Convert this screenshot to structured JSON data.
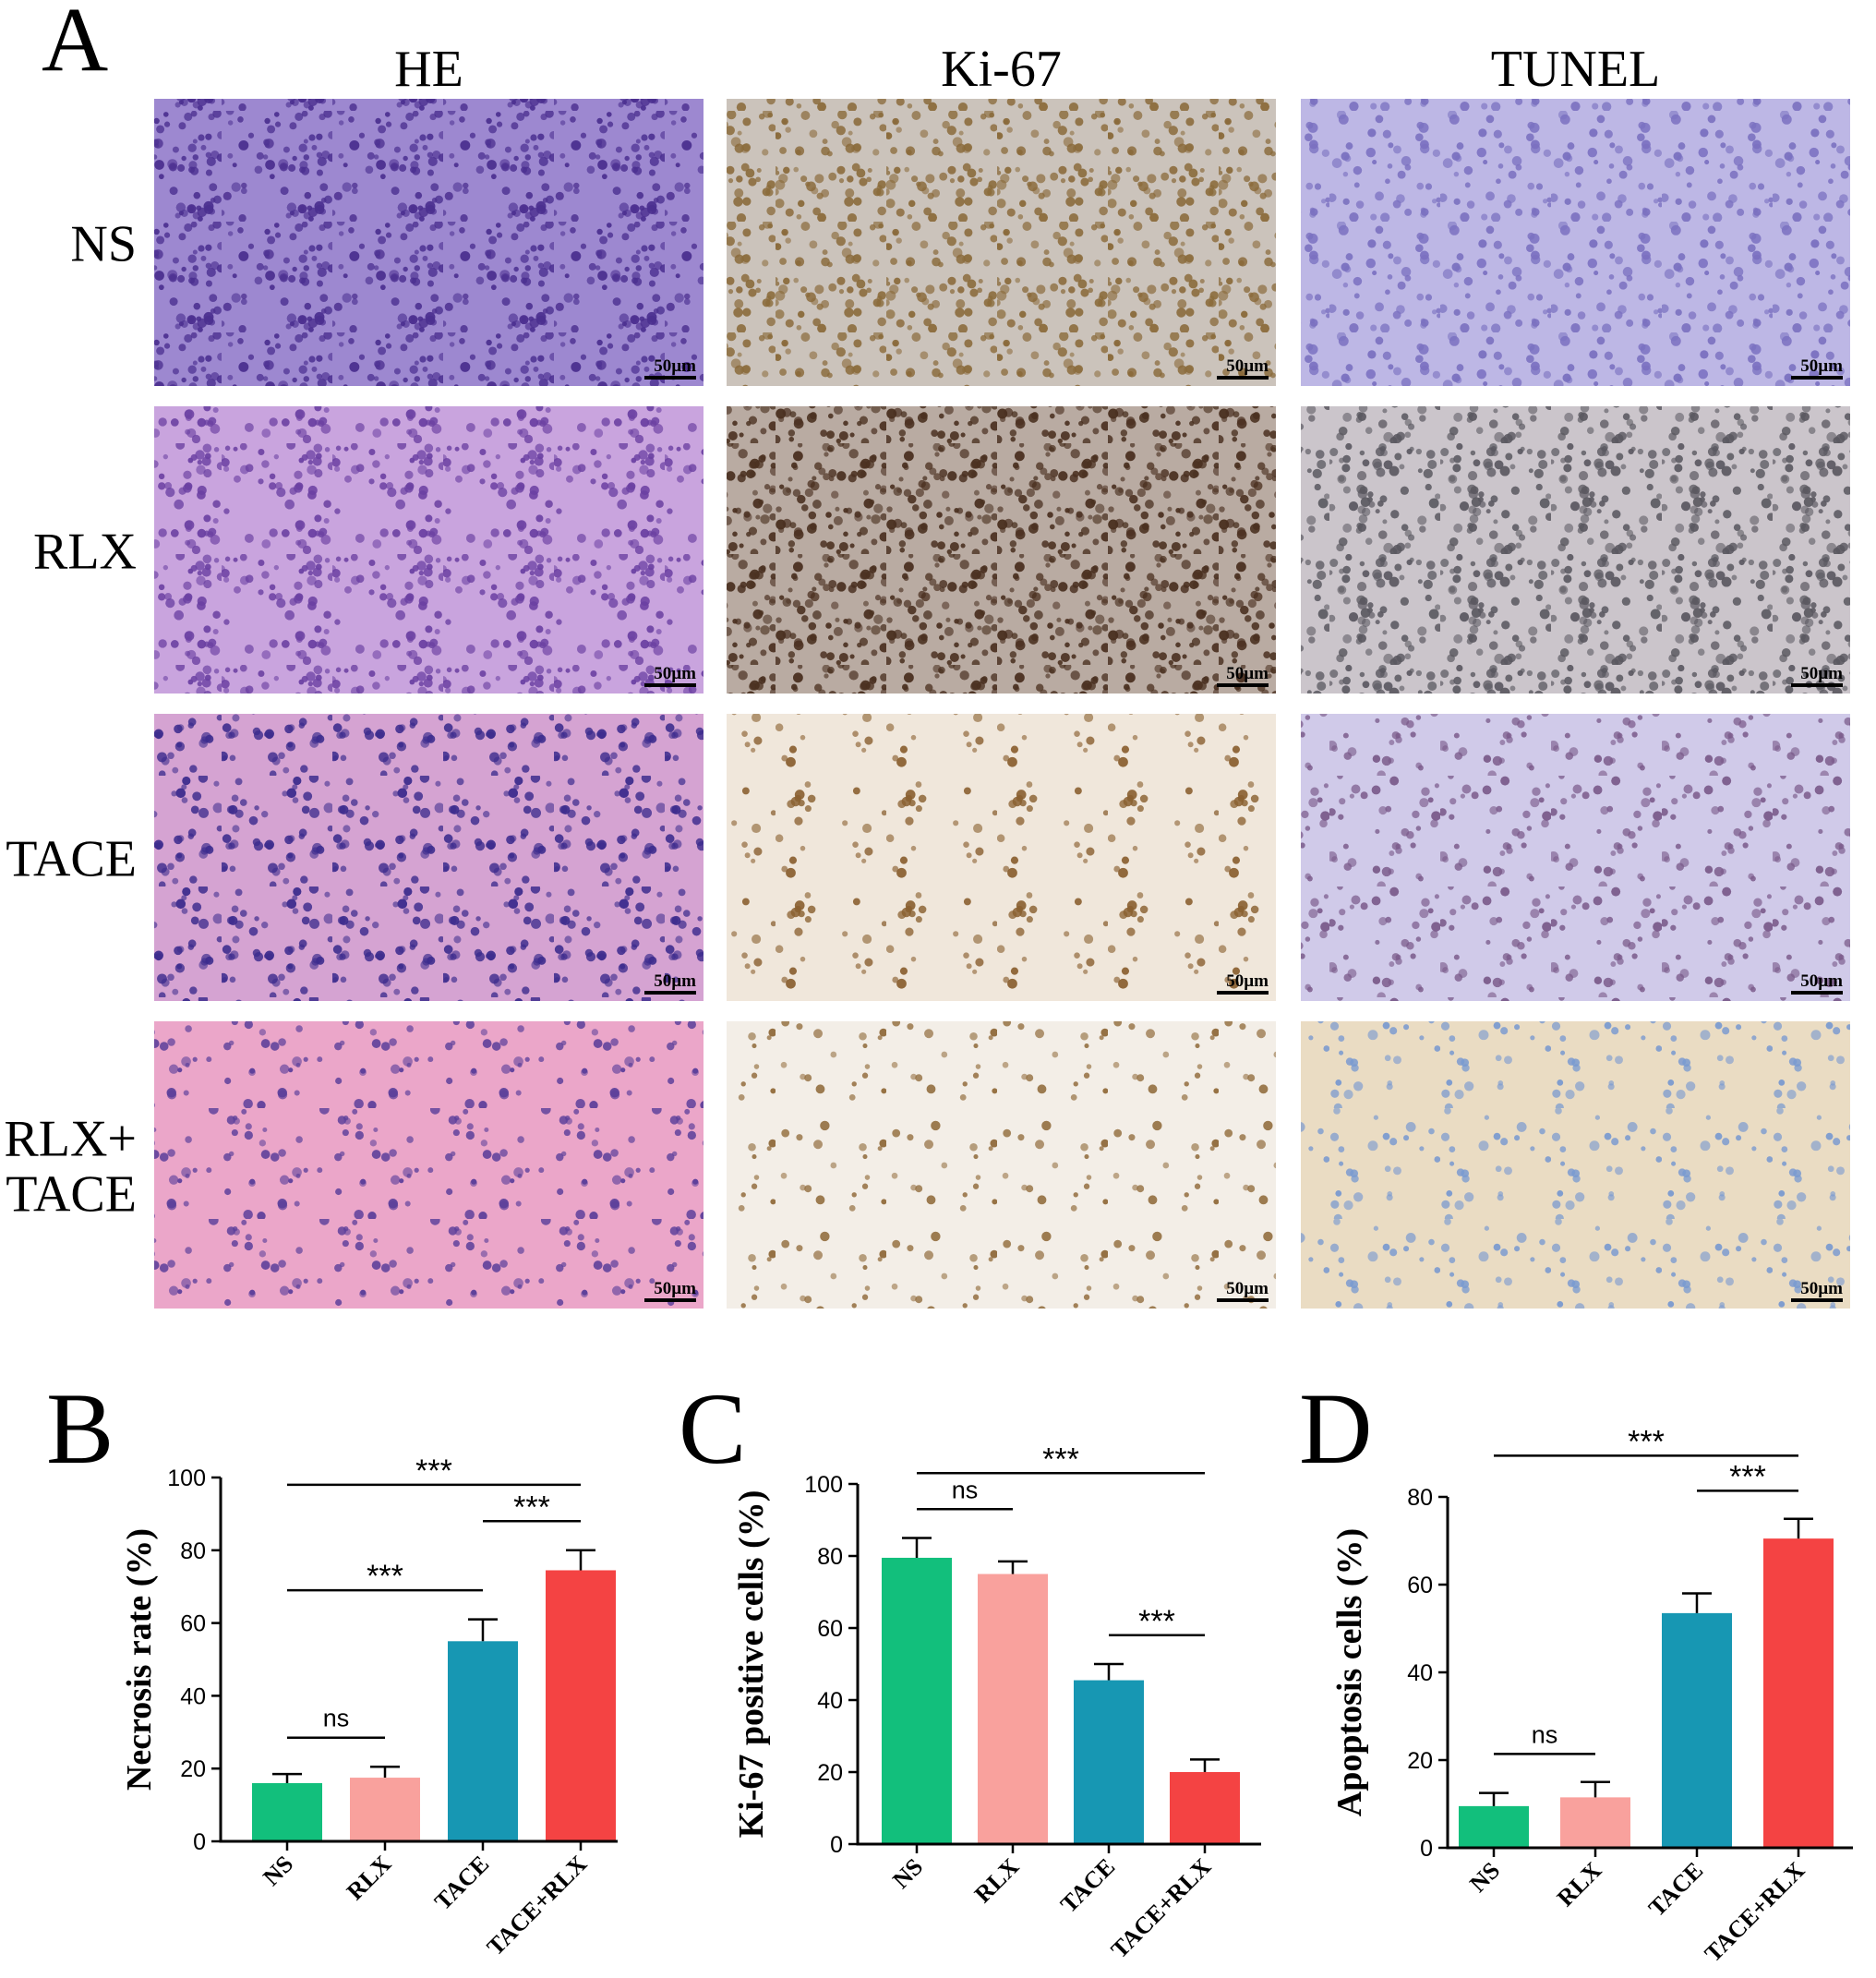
{
  "panel_a": {
    "label": "A",
    "columns": [
      "HE",
      "Ki-67",
      "TUNEL"
    ],
    "rows": [
      [
        "NS"
      ],
      [
        "RLX"
      ],
      [
        "TACE"
      ],
      [
        "RLX+",
        "TACE"
      ]
    ],
    "scale_bar": "50µm"
  },
  "chart_data": [
    {
      "type": "bar",
      "panel_label": "B",
      "ylabel": "Necrosis rate (%)",
      "categories": [
        "NS",
        "RLX",
        "TACE",
        "TACE+RLX"
      ],
      "values": [
        16,
        17.5,
        55,
        74.5
      ],
      "errors": [
        2.5,
        3,
        6,
        5.5
      ],
      "colors": [
        "#12bf7c",
        "#f9a19d",
        "#1797b3",
        "#f44343"
      ],
      "ylim": [
        0,
        100
      ],
      "yticks": [
        0,
        20,
        40,
        60,
        80,
        100
      ],
      "annotations": [
        {
          "text": "ns",
          "from": "NS",
          "to": "RLX"
        },
        {
          "text": "***",
          "from": "NS",
          "to": "TACE"
        },
        {
          "text": "***",
          "from": "TACE",
          "to": "TACE+RLX"
        },
        {
          "text": "***",
          "from": "NS",
          "to": "TACE+RLX"
        }
      ]
    },
    {
      "type": "bar",
      "panel_label": "C",
      "ylabel": "Ki-67 positive cells (%)",
      "categories": [
        "NS",
        "RLX",
        "TACE",
        "TACE+RLX"
      ],
      "values": [
        79.5,
        75,
        45.5,
        20
      ],
      "errors": [
        5.5,
        3.5,
        4.5,
        3.5
      ],
      "colors": [
        "#12bf7c",
        "#f9a19d",
        "#1797b3",
        "#f44343"
      ],
      "ylim": [
        0,
        100
      ],
      "yticks": [
        0,
        20,
        40,
        60,
        80,
        100
      ],
      "annotations": [
        {
          "text": "ns",
          "from": "NS",
          "to": "RLX"
        },
        {
          "text": "***",
          "from": "TACE",
          "to": "TACE+RLX"
        },
        {
          "text": "***",
          "from": "NS",
          "to": "TACE+RLX"
        }
      ]
    },
    {
      "type": "bar",
      "panel_label": "D",
      "ylabel": "Apoptosis cells (%)",
      "categories": [
        "NS",
        "RLX",
        "TACE",
        "TACE+RLX"
      ],
      "values": [
        9.5,
        11.5,
        53.5,
        70.5
      ],
      "errors": [
        3,
        3.5,
        4.5,
        4.5
      ],
      "colors": [
        "#12bf7c",
        "#f9a19d",
        "#1797b3",
        "#f44343"
      ],
      "ylim": [
        0,
        80
      ],
      "yticks": [
        0,
        20,
        40,
        60,
        80
      ],
      "annotations": [
        {
          "text": "ns",
          "from": "NS",
          "to": "RLX"
        },
        {
          "text": "***",
          "from": "TACE",
          "to": "TACE+RLX"
        },
        {
          "text": "***",
          "from": "NS",
          "to": "TACE+RLX"
        }
      ]
    }
  ]
}
